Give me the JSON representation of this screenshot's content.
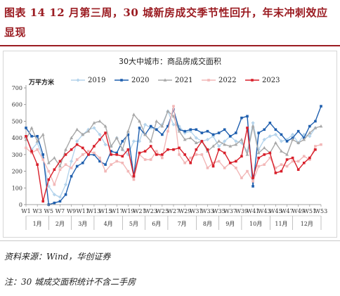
{
  "header": {
    "title": "图表 14   12 月第三周，30 城新房成交季节性回升，年末冲刺效应显现"
  },
  "footer": {
    "source": "资料来源：Wind，华创证券",
    "note": "注：30 城成交面积统计不含二手房"
  },
  "chart_data": {
    "type": "line",
    "title": "30大中城市：商品房成交面积",
    "unit_label": "万平方米",
    "ylim": [
      0,
      700
    ],
    "y_ticks": [
      0,
      100,
      200,
      300,
      400,
      500,
      600,
      700
    ],
    "x_week_count": 53,
    "x_tick_labels": [
      "W1",
      "W3",
      "W5",
      "W7",
      "W9",
      "W11",
      "W13",
      "W15",
      "W17",
      "W19",
      "W21",
      "W23",
      "W25",
      "W27",
      "W29",
      "W31",
      "W33",
      "W35",
      "W37",
      "W39",
      "W41",
      "W43",
      "W45",
      "W47",
      "W49",
      "W51",
      "W53"
    ],
    "month_labels": [
      "1月",
      "2月",
      "3月",
      "4月",
      "5月",
      "6月",
      "7月",
      "8月",
      "9月",
      "10月",
      "11月",
      "12月"
    ],
    "month_week_boundaries": [
      5,
      9,
      13,
      18,
      22,
      26,
      31,
      35,
      39,
      44,
      48,
      53
    ],
    "legend_position": "top",
    "colors": {
      "2019": "#b5d4ec",
      "2020": "#1f5fae",
      "2021": "#a8a8a8",
      "2022": "#f2b7b7",
      "2023": "#d81f2a"
    },
    "series": [
      {
        "name": "2019",
        "values": [
          410,
          330,
          370,
          280,
          110,
          60,
          45,
          120,
          260,
          380,
          420,
          450,
          460,
          420,
          360,
          350,
          400,
          330,
          300,
          380,
          380,
          480,
          460,
          450,
          480,
          560,
          480,
          470,
          430,
          440,
          400,
          380,
          390,
          410,
          350,
          380,
          410,
          380,
          370,
          320,
          490,
          330,
          390,
          410,
          420,
          380,
          390,
          420,
          370,
          420,
          410,
          460,
          null
        ]
      },
      {
        "name": "2020",
        "values": [
          460,
          410,
          410,
          300,
          0,
          10,
          20,
          60,
          170,
          230,
          250,
          300,
          300,
          260,
          240,
          320,
          310,
          380,
          420,
          170,
          460,
          420,
          470,
          450,
          420,
          470,
          570,
          450,
          440,
          450,
          450,
          430,
          440,
          420,
          430,
          450,
          410,
          430,
          520,
          530,
          110,
          430,
          450,
          490,
          450,
          420,
          380,
          400,
          440,
          400,
          470,
          500,
          590
        ]
      },
      {
        "name": "2021",
        "values": [
          390,
          460,
          380,
          420,
          250,
          280,
          230,
          330,
          400,
          450,
          420,
          440,
          490,
          500,
          470,
          350,
          400,
          330,
          440,
          540,
          500,
          420,
          380,
          500,
          470,
          560,
          530,
          440,
          390,
          400,
          370,
          380,
          320,
          350,
          380,
          360,
          350,
          360,
          390,
          300,
          470,
          310,
          340,
          310,
          370,
          320,
          300,
          390,
          370,
          390,
          430,
          460,
          470
        ]
      },
      {
        "name": "2022",
        "values": [
          340,
          310,
          330,
          270,
          200,
          120,
          210,
          240,
          220,
          270,
          300,
          320,
          310,
          280,
          200,
          240,
          260,
          250,
          200,
          150,
          300,
          270,
          270,
          320,
          280,
          440,
          590,
          300,
          250,
          280,
          300,
          300,
          220,
          250,
          260,
          220,
          250,
          220,
          160,
          200,
          140,
          230,
          240,
          280,
          220,
          240,
          230,
          260,
          260,
          290,
          270,
          350,
          360
        ]
      },
      {
        "name": "2023",
        "values": [
          410,
          320,
          240,
          20,
          150,
          210,
          260,
          300,
          330,
          360,
          340,
          300,
          350,
          390,
          430,
          300,
          300,
          290,
          330,
          170,
          310,
          320,
          350,
          300,
          300,
          330,
          330,
          340,
          300,
          250,
          330,
          380,
          330,
          230,
          330,
          310,
          250,
          260,
          290,
          460,
          160,
          280,
          300,
          310,
          190,
          200,
          270,
          280,
          210,
          250,
          280,
          330,
          null
        ]
      }
    ]
  }
}
